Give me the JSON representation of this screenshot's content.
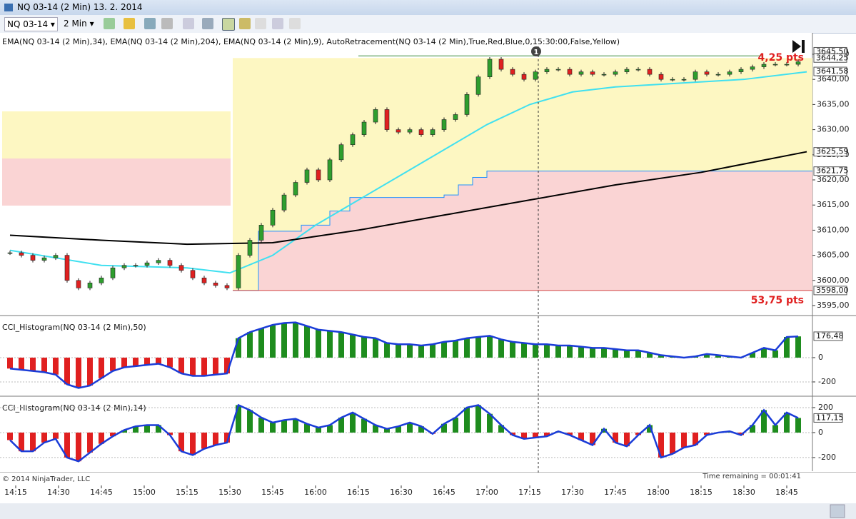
{
  "window": {
    "title": "NQ 03-14 (2 Min)  13. 2. 2014",
    "symbol": "NQ 03-14",
    "interval": "2 Min"
  },
  "chart_data": [
    {
      "type": "candlestick",
      "label": "EMA(NQ 03-14 (2 Min),34), EMA(NQ 03-14 (2 Min),204), EMA(NQ 03-14 (2 Min),9), AutoRetracement(NQ 03-14 (2 Min),True,Red,Blue,0,15:30:00,False,Yellow)",
      "x": [
        "14:13",
        "14:17",
        "14:21",
        "14:25",
        "14:29",
        "14:33",
        "14:37",
        "14:41",
        "14:45",
        "14:49",
        "14:53",
        "14:57",
        "15:01",
        "15:05",
        "15:09",
        "15:13",
        "15:17",
        "15:21",
        "15:25",
        "15:29",
        "15:33",
        "15:37",
        "15:41",
        "15:45",
        "15:49",
        "15:53",
        "15:57",
        "16:01",
        "16:05",
        "16:09",
        "16:13",
        "16:17",
        "16:21",
        "16:25",
        "16:29",
        "16:33",
        "16:37",
        "16:41",
        "16:45",
        "16:49",
        "16:53",
        "16:57",
        "17:01",
        "17:05",
        "17:09",
        "17:13",
        "17:17",
        "17:21",
        "17:25",
        "17:29",
        "17:33",
        "17:37",
        "17:41",
        "17:45",
        "17:49",
        "17:53",
        "17:57",
        "18:01",
        "18:05",
        "18:09",
        "18:13",
        "18:17",
        "18:21",
        "18:25",
        "18:29",
        "18:33",
        "18:37",
        "18:41",
        "18:45",
        "18:49"
      ],
      "values": [
        3605.5,
        3605,
        3604,
        3604.5,
        3605,
        3600,
        3598.5,
        3599.5,
        3600.5,
        3602.5,
        3603,
        3603,
        3603.5,
        3604,
        3603,
        3602,
        3600.5,
        3599.5,
        3599,
        3598.5,
        3605,
        3608,
        3611,
        3614,
        3617,
        3619.5,
        3622,
        3620,
        3624,
        3627,
        3629,
        3631.5,
        3634,
        3630,
        3629.5,
        3630,
        3629,
        3630,
        3632,
        3633,
        3637,
        3640.5,
        3644,
        3642,
        3641,
        3640,
        3641.5,
        3642,
        3642,
        3641,
        3641.5,
        3641,
        3641,
        3641.5,
        3642,
        3642,
        3641,
        3640,
        3640,
        3640,
        3641.5,
        3641,
        3641,
        3641.5,
        3642,
        3642.5,
        3643,
        3643,
        3643,
        3643.5
      ],
      "up_color": "#2e9e2e",
      "down_color": "#e02020",
      "ylim": [
        3593.3,
        3649.4
      ],
      "yticks": [
        {
          "value": 3595,
          "label": "3595,00"
        },
        {
          "value": 3600,
          "label": "3600,00"
        },
        {
          "value": 3605,
          "label": "3605,00"
        },
        {
          "value": 3610,
          "label": "3610,00"
        },
        {
          "value": 3615,
          "label": "3615,00"
        },
        {
          "value": 3620,
          "label": "3620,00"
        },
        {
          "value": 3625,
          "label": "3625,00"
        },
        {
          "value": 3630,
          "label": "3630,00"
        },
        {
          "value": 3635,
          "label": "3635,00"
        },
        {
          "value": 3640,
          "label": "3640,00"
        },
        {
          "value": 3645,
          "label": "3645,00"
        }
      ],
      "xticks": [
        "14:15",
        "14:30",
        "14:45",
        "15:00",
        "15:15",
        "15:30",
        "15:45",
        "16:00",
        "16:15",
        "16:30",
        "16:45",
        "17:00",
        "17:15",
        "17:30",
        "17:45",
        "18:00",
        "18:15",
        "18:30",
        "18:45"
      ],
      "lines": [
        {
          "color": "#40e0f0",
          "x": [
            "14:13",
            "14:45",
            "15:15",
            "15:30",
            "15:45",
            "16:00",
            "16:15",
            "16:30",
            "16:45",
            "17:00",
            "17:15",
            "17:30",
            "17:45",
            "18:00",
            "18:30",
            "18:52"
          ],
          "values": [
            3606,
            3603,
            3602.5,
            3601.5,
            3605,
            3611,
            3616,
            3621,
            3626,
            3631,
            3635,
            3637.5,
            3638.5,
            3639,
            3640,
            3641.5
          ]
        },
        {
          "color": "#000000",
          "x": [
            "14:13",
            "14:45",
            "15:15",
            "15:45",
            "16:15",
            "16:45",
            "17:15",
            "17:45",
            "18:15",
            "18:52"
          ],
          "values": [
            3609,
            3608,
            3607.2,
            3607.5,
            3610,
            3613,
            3616,
            3619,
            3621.5,
            3625.6
          ]
        }
      ],
      "retracement": {
        "start": "15:31",
        "end": "18:54",
        "low": 3598,
        "high": 3644.25,
        "fill": "#fdf7c2",
        "zone_color": "#fad4d4",
        "line_color": "#1e90ff",
        "x": [
          "15:31",
          "15:40",
          "15:55",
          "16:05",
          "16:12",
          "16:45",
          "16:50",
          "16:55",
          "17:00",
          "18:54"
        ],
        "values": [
          3598,
          3609.8,
          3611,
          3613.8,
          3616.5,
          3617,
          3619,
          3620.5,
          3621.75,
          3621.75
        ]
      },
      "price_markers": [
        {
          "value": 3645.5,
          "label": "3645,50"
        },
        {
          "value": 3644.25,
          "label": "3644,25"
        },
        {
          "value": 3641.58,
          "label": "3641,58"
        },
        {
          "value": 3625.59,
          "label": "3625,59"
        },
        {
          "value": 3621.75,
          "label": "3621,75"
        },
        {
          "value": 3598,
          "label": "3598,00"
        }
      ],
      "annotations": [
        "4,25 pts",
        "53,75 pts",
        "1"
      ],
      "cursor_time": "17:18"
    },
    {
      "type": "bar",
      "label": "CCI_Histogram(NQ 03-14 (2 Min),50)",
      "ylim": [
        -306,
        329
      ],
      "yticks": [
        0,
        -200
      ],
      "values": [
        -90,
        -100,
        -110,
        -120,
        -140,
        -220,
        -250,
        -230,
        -170,
        -110,
        -80,
        -70,
        -60,
        -50,
        -80,
        -130,
        -150,
        -150,
        -140,
        -130,
        160,
        210,
        240,
        270,
        285,
        290,
        260,
        230,
        220,
        210,
        190,
        170,
        160,
        120,
        110,
        110,
        100,
        110,
        130,
        140,
        160,
        170,
        180,
        150,
        130,
        120,
        110,
        110,
        100,
        100,
        90,
        80,
        80,
        70,
        60,
        60,
        40,
        20,
        10,
        0,
        10,
        30,
        20,
        10,
        0,
        40,
        80,
        60,
        170,
        175
      ],
      "marker": {
        "value": 176.48,
        "label": "176,48"
      }
    },
    {
      "type": "bar",
      "label": "CCI_Histogram(NQ 03-14 (2 Min),14)",
      "ylim": [
        -309,
        274
      ],
      "yticks": [
        200,
        0,
        -200
      ],
      "values": [
        -60,
        -150,
        -150,
        -80,
        -50,
        -200,
        -230,
        -160,
        -90,
        -30,
        20,
        50,
        60,
        60,
        -20,
        -150,
        -180,
        -130,
        -100,
        -80,
        220,
        180,
        120,
        80,
        100,
        110,
        70,
        40,
        60,
        120,
        160,
        110,
        60,
        30,
        50,
        80,
        50,
        -10,
        70,
        120,
        200,
        220,
        150,
        60,
        -20,
        -50,
        -40,
        -30,
        10,
        -20,
        -60,
        -100,
        30,
        -80,
        -110,
        -20,
        60,
        -200,
        -170,
        -120,
        -100,
        -20,
        0,
        10,
        -20,
        60,
        180,
        60,
        160,
        117
      ],
      "marker": {
        "value": 117.15,
        "label": "117,15"
      }
    }
  ],
  "footer": {
    "copyright": "© 2014 NinjaTrader, LLC",
    "time_remaining": "Time remaining = 00:01:41"
  }
}
